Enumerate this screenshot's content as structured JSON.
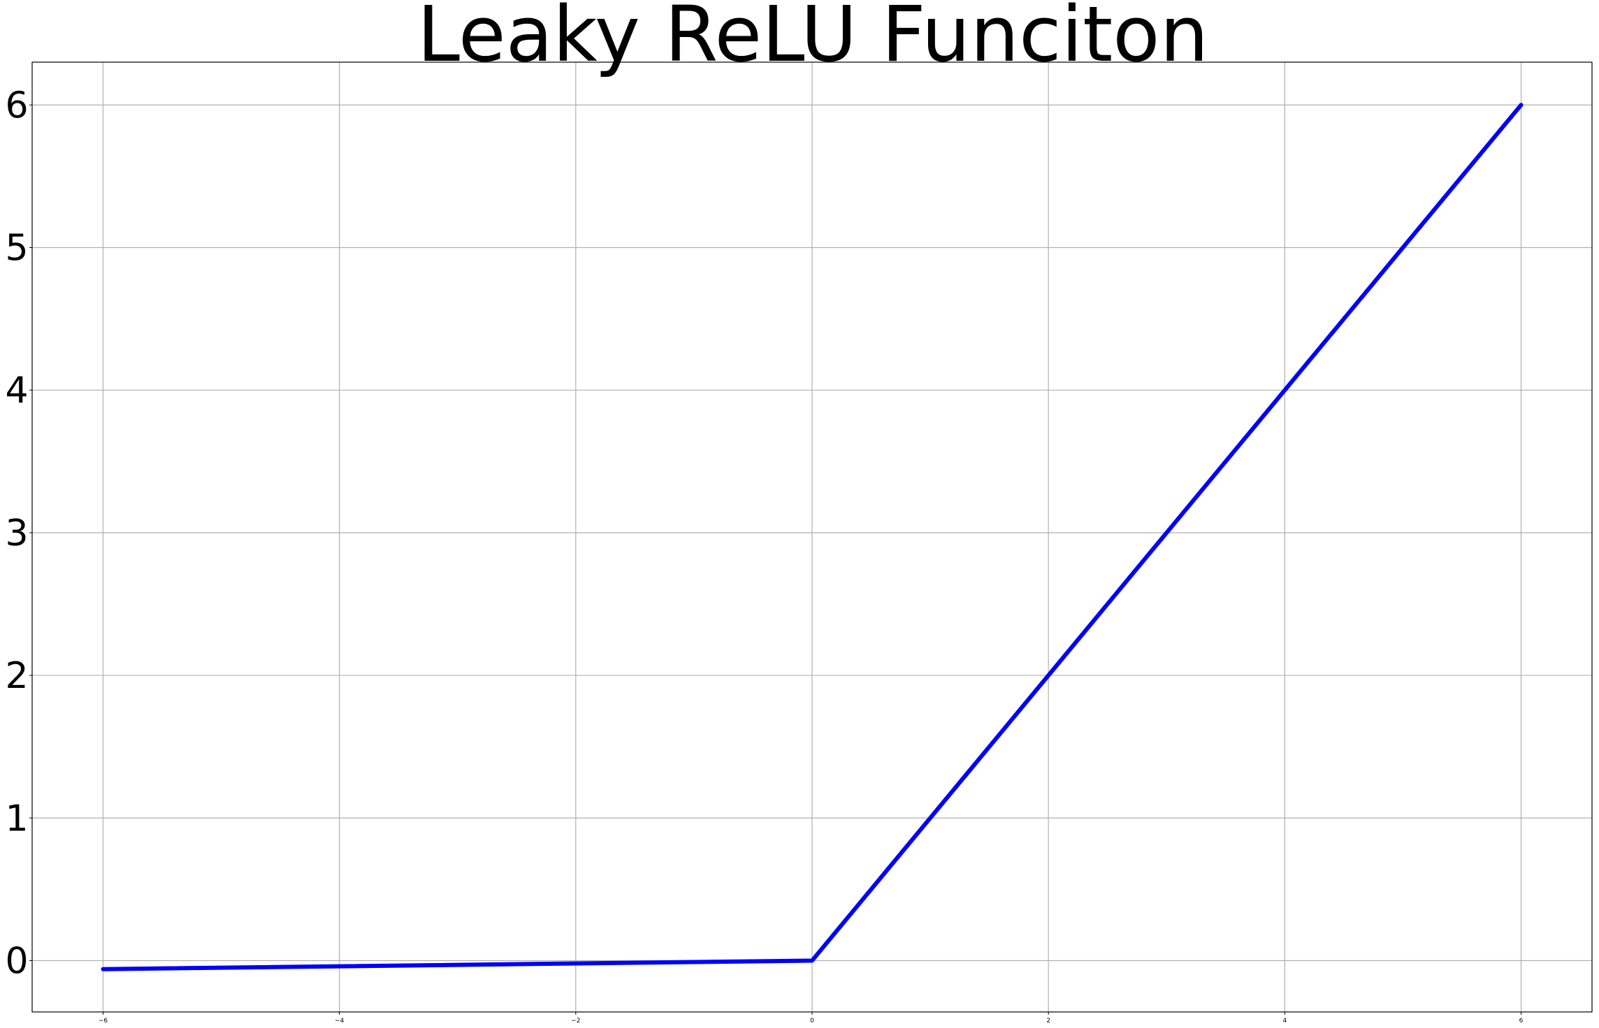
{
  "chart_data": {
    "type": "line",
    "title": "Leaky ReLU Funciton",
    "xlabel": "",
    "ylabel": "",
    "xlim": [
      -6.6,
      6.6
    ],
    "ylim": [
      -0.36,
      6.3
    ],
    "x_ticks": [
      -6,
      -4,
      -2,
      0,
      2,
      4,
      6
    ],
    "x_tick_labels": [
      "−6",
      "−4",
      "−2",
      "0",
      "2",
      "4",
      "6"
    ],
    "y_ticks": [
      0,
      1,
      2,
      3,
      4,
      5,
      6
    ],
    "y_tick_labels": [
      "0",
      "1",
      "2",
      "3",
      "4",
      "5",
      "6"
    ],
    "grid": true,
    "series": [
      {
        "color": "#0000ff",
        "x": [
          -6,
          0,
          6
        ],
        "y": [
          -0.06,
          0,
          6
        ]
      }
    ]
  }
}
